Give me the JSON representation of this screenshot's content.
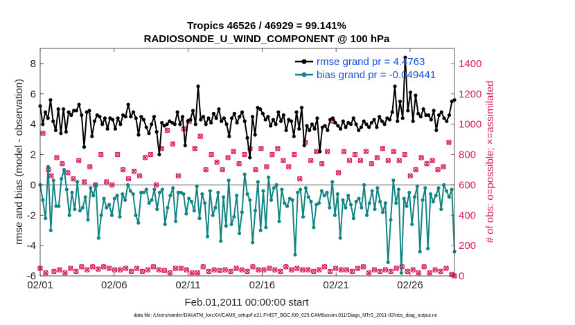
{
  "colors": {
    "rmse": "#000000",
    "bias": "#138484",
    "obs": "#d6175e",
    "legend_text": "#1a4fe0",
    "zero_line": "#b0b0b0"
  },
  "chart_data": {
    "type": "line",
    "title": "Tropics 46526 / 46929 = 99.141%",
    "subtitle": "RADIOSONDE_U_WIND_COMPONENT @ 100 hPa",
    "xlabel": "Feb.01,2011 00:00:00 start",
    "ylabel_left": "rmse and bias (model - observation)",
    "ylabel_right": "# of obs: o=possible; ×=assimilated",
    "footer": "data file: /Users/raeder/DAI/ATM_forcXX/CAM6_setup/f.e21.FHIST_BGC.f09_025.CAM6assim.011/Diags_NTrS_2011-02/obs_diag_output.nc",
    "xlim": [
      0,
      28
    ],
    "ylim_left": [
      -6,
      9
    ],
    "ylim_right": [
      0,
      1500
    ],
    "x_ticks": [
      0,
      5,
      10,
      15,
      20,
      25
    ],
    "x_tick_labels": [
      "02/01",
      "02/06",
      "02/11",
      "02/16",
      "02/21",
      "02/26"
    ],
    "y_left_ticks": [
      -6,
      -4,
      -2,
      0,
      2,
      4,
      6,
      8
    ],
    "y_left_tick_labels": [
      "-6",
      "-4",
      "-2",
      "0",
      "2",
      "4",
      "6",
      "8"
    ],
    "y_right_ticks": [
      0,
      200,
      400,
      600,
      800,
      1000,
      1200,
      1400
    ],
    "y_right_tick_labels": [
      "0",
      "200",
      "400",
      "600",
      "800",
      "1000",
      "1200",
      "1400"
    ],
    "legend": [
      "rmse grand pr = 4.4763",
      "bias grand pr = -0.049441"
    ],
    "legend_position": "top-right",
    "grid": false,
    "series": [
      {
        "name": "rmse",
        "axis": "left",
        "values": [
          5.2,
          4.0,
          4.8,
          4.4,
          5.6,
          4.2,
          3.6,
          5.0,
          3.4,
          5.0,
          3.5,
          4.8,
          4.6,
          4.9,
          4.9,
          5.3,
          4.6,
          2.5,
          4.8,
          4.9,
          3.2,
          4.2,
          4.6,
          4.5,
          4.0,
          4.4,
          3.7,
          4.4,
          4.3,
          3.7,
          4.4,
          4.0,
          4.6,
          4.5,
          5.3,
          4.5,
          4.8,
          4.4,
          3.3,
          4.5,
          4.3,
          3.8,
          3.4,
          4.0,
          4.5,
          3.5,
          2.0,
          4.1,
          3.9,
          4.0,
          4.2,
          4.1,
          4.0,
          4.8,
          4.0,
          4.5,
          2.6,
          4.2,
          4.3,
          4.9,
          4.0,
          6.5,
          4.3,
          4.5,
          4.0,
          4.4,
          4.1,
          4.7,
          4.4,
          5.0,
          4.2,
          4.4,
          4.0,
          3.2,
          4.4,
          4.7,
          4.1,
          4.5,
          4.8,
          4.2,
          3.1,
          1.8,
          4.5,
          3.3,
          5.1,
          5.0,
          4.7,
          4.3,
          4.5,
          3.9,
          4.3,
          4.0,
          4.8,
          4.2,
          4.6,
          3.6,
          4.3,
          4.2,
          3.2,
          4.8,
          3.7,
          5.1,
          2.6,
          3.9,
          3.6,
          4.0,
          3.7,
          4.4,
          2.2,
          3.8,
          3.9,
          3.6,
          4.3,
          4.4,
          4.1,
          3.9,
          3.7,
          4.2,
          3.8,
          4.1,
          4.0,
          4.4,
          4.0,
          3.6,
          3.8,
          4.2,
          4.0,
          3.8,
          4.1,
          4.3,
          3.8,
          4.5,
          4.2,
          4.0,
          4.4,
          4.3,
          4.8,
          6.5,
          4.2,
          5.5,
          4.4,
          8.4,
          4.9,
          6.1,
          4.2,
          5.9,
          4.7,
          4.5,
          5.0,
          4.6,
          4.6,
          4.3,
          4.9,
          3.6,
          4.6,
          4.8,
          4.4,
          4.2,
          4.6,
          5.5,
          5.6
        ]
      },
      {
        "name": "bias",
        "axis": "left",
        "values": [
          0.0,
          -1.0,
          -2.2,
          1.2,
          -3.0,
          0.3,
          -1.4,
          -1.4,
          0.4,
          1.0,
          -0.3,
          -2.0,
          -0.5,
          -1.6,
          0.2,
          -1.7,
          -1.5,
          -0.8,
          -2.3,
          -0.2,
          -0.7,
          0.0,
          -3.5,
          -2.0,
          -0.9,
          -1.5,
          -1.3,
          -2.0,
          -0.9,
          -0.7,
          -2.1,
          -0.6,
          -1.0,
          0.0,
          -0.4,
          -0.6,
          -2.0,
          -2.5,
          -0.5,
          -0.5,
          -0.3,
          -1.2,
          -1.0,
          -0.3,
          -1.6,
          -0.5,
          -0.3,
          -2.6,
          -1.5,
          -0.7,
          -0.2,
          -2.4,
          -0.5,
          -0.5,
          -0.6,
          -1.9,
          -0.9,
          -1.1,
          -1.7,
          -0.1,
          -2.2,
          -0.6,
          -1.2,
          -3.4,
          -0.4,
          -2.0,
          -1.5,
          -0.5,
          -3.7,
          -0.8,
          -2.7,
          0.3,
          -2.6,
          -2.1,
          -0.7,
          -3.2,
          -1.8,
          0.7,
          -0.6,
          -1.0,
          -3.8,
          -1.7,
          0.2,
          -3.0,
          -0.4,
          -2.8,
          0.5,
          -1.0,
          -0.2,
          0.0,
          -2.4,
          -0.3,
          -1.2,
          -1.4,
          -0.9,
          -1.0,
          -4.6,
          -0.5,
          -0.3,
          -2.1,
          -0.2,
          -0.8,
          -1.1,
          -2.8,
          -1.3,
          -1.2,
          -0.4,
          -0.7,
          -0.5,
          -1.5,
          0.2,
          -2.0,
          -0.6,
          -3.5,
          -1.0,
          -1.5,
          -0.7,
          -1.3,
          -2.2,
          -1.1,
          -0.9,
          -1.5,
          0.0,
          -2.0,
          -1.2,
          -0.4,
          -1.6,
          -0.2,
          -1.1,
          -1.8,
          -1.2,
          -5.1,
          -2.3,
          0.3,
          -1.2,
          -0.3,
          -5.8,
          -0.9,
          -1.4,
          -0.5,
          -2.6,
          -0.8,
          -0.1,
          -4.4,
          -1.0,
          -0.2,
          -4.2,
          -0.6,
          -1.1,
          -0.7,
          -0.2,
          -1.6,
          0.0,
          -0.4,
          -0.8,
          -0.3,
          -4.4
        ]
      },
      {
        "name": "obs_possible",
        "axis": "right",
        "marker": "o",
        "values": [
          50,
          940,
          20,
          700,
          660,
          30,
          780,
          40,
          740,
          20,
          680,
          50,
          640,
          30,
          760,
          60,
          620,
          40,
          720,
          60,
          600,
          45,
          800,
          60,
          620,
          50,
          600,
          40,
          800,
          40,
          700,
          50,
          640,
          30,
          690,
          50,
          660,
          30,
          780,
          40,
          800,
          60,
          600,
          40,
          840,
          35,
          960,
          20,
          870,
          50,
          660,
          50,
          970,
          40,
          1020,
          20,
          840,
          20,
          920,
          60,
          700,
          30,
          800,
          40,
          750,
          35,
          700,
          40,
          780,
          30,
          820,
          50,
          740,
          40,
          800,
          30,
          840,
          60,
          700,
          40,
          840,
          40,
          720,
          50,
          800,
          40,
          840,
          30,
          760,
          60,
          720,
          40,
          800,
          50,
          640,
          40,
          880,
          40,
          760,
          30,
          820,
          40,
          740,
          60,
          820,
          30,
          1020,
          50,
          680,
          40,
          820,
          40,
          760,
          30,
          800,
          50,
          760,
          60,
          820,
          20,
          740,
          40,
          780,
          30,
          840,
          40,
          760,
          30,
          820,
          50,
          760,
          60,
          800,
          30,
          660,
          40,
          700,
          20,
          780,
          60,
          740,
          20,
          760,
          40,
          700,
          30,
          720,
          50,
          880,
          10,
          0
        ]
      },
      {
        "name": "obs_assimilated",
        "axis": "right",
        "marker": "x",
        "values": [
          50,
          940,
          20,
          700,
          660,
          30,
          780,
          40,
          740,
          20,
          680,
          50,
          640,
          30,
          760,
          60,
          620,
          40,
          720,
          60,
          600,
          45,
          800,
          60,
          620,
          50,
          600,
          40,
          800,
          40,
          700,
          50,
          640,
          30,
          690,
          50,
          660,
          30,
          780,
          40,
          800,
          60,
          600,
          40,
          840,
          35,
          960,
          20,
          870,
          50,
          660,
          50,
          970,
          40,
          1020,
          20,
          840,
          20,
          920,
          60,
          700,
          30,
          800,
          40,
          750,
          35,
          700,
          40,
          780,
          30,
          820,
          50,
          740,
          40,
          800,
          30,
          840,
          60,
          700,
          40,
          840,
          40,
          720,
          50,
          800,
          40,
          840,
          30,
          760,
          60,
          720,
          40,
          800,
          50,
          640,
          40,
          880,
          40,
          760,
          30,
          820,
          40,
          740,
          60,
          820,
          30,
          1020,
          50,
          680,
          40,
          820,
          40,
          760,
          30,
          800,
          50,
          760,
          60,
          820,
          20,
          740,
          40,
          780,
          30,
          840,
          40,
          760,
          30,
          820,
          50,
          760,
          60,
          800,
          30,
          660,
          40,
          700,
          20,
          780,
          60,
          740,
          20,
          760,
          40,
          700,
          30,
          720,
          50,
          880,
          10,
          0
        ]
      }
    ]
  }
}
